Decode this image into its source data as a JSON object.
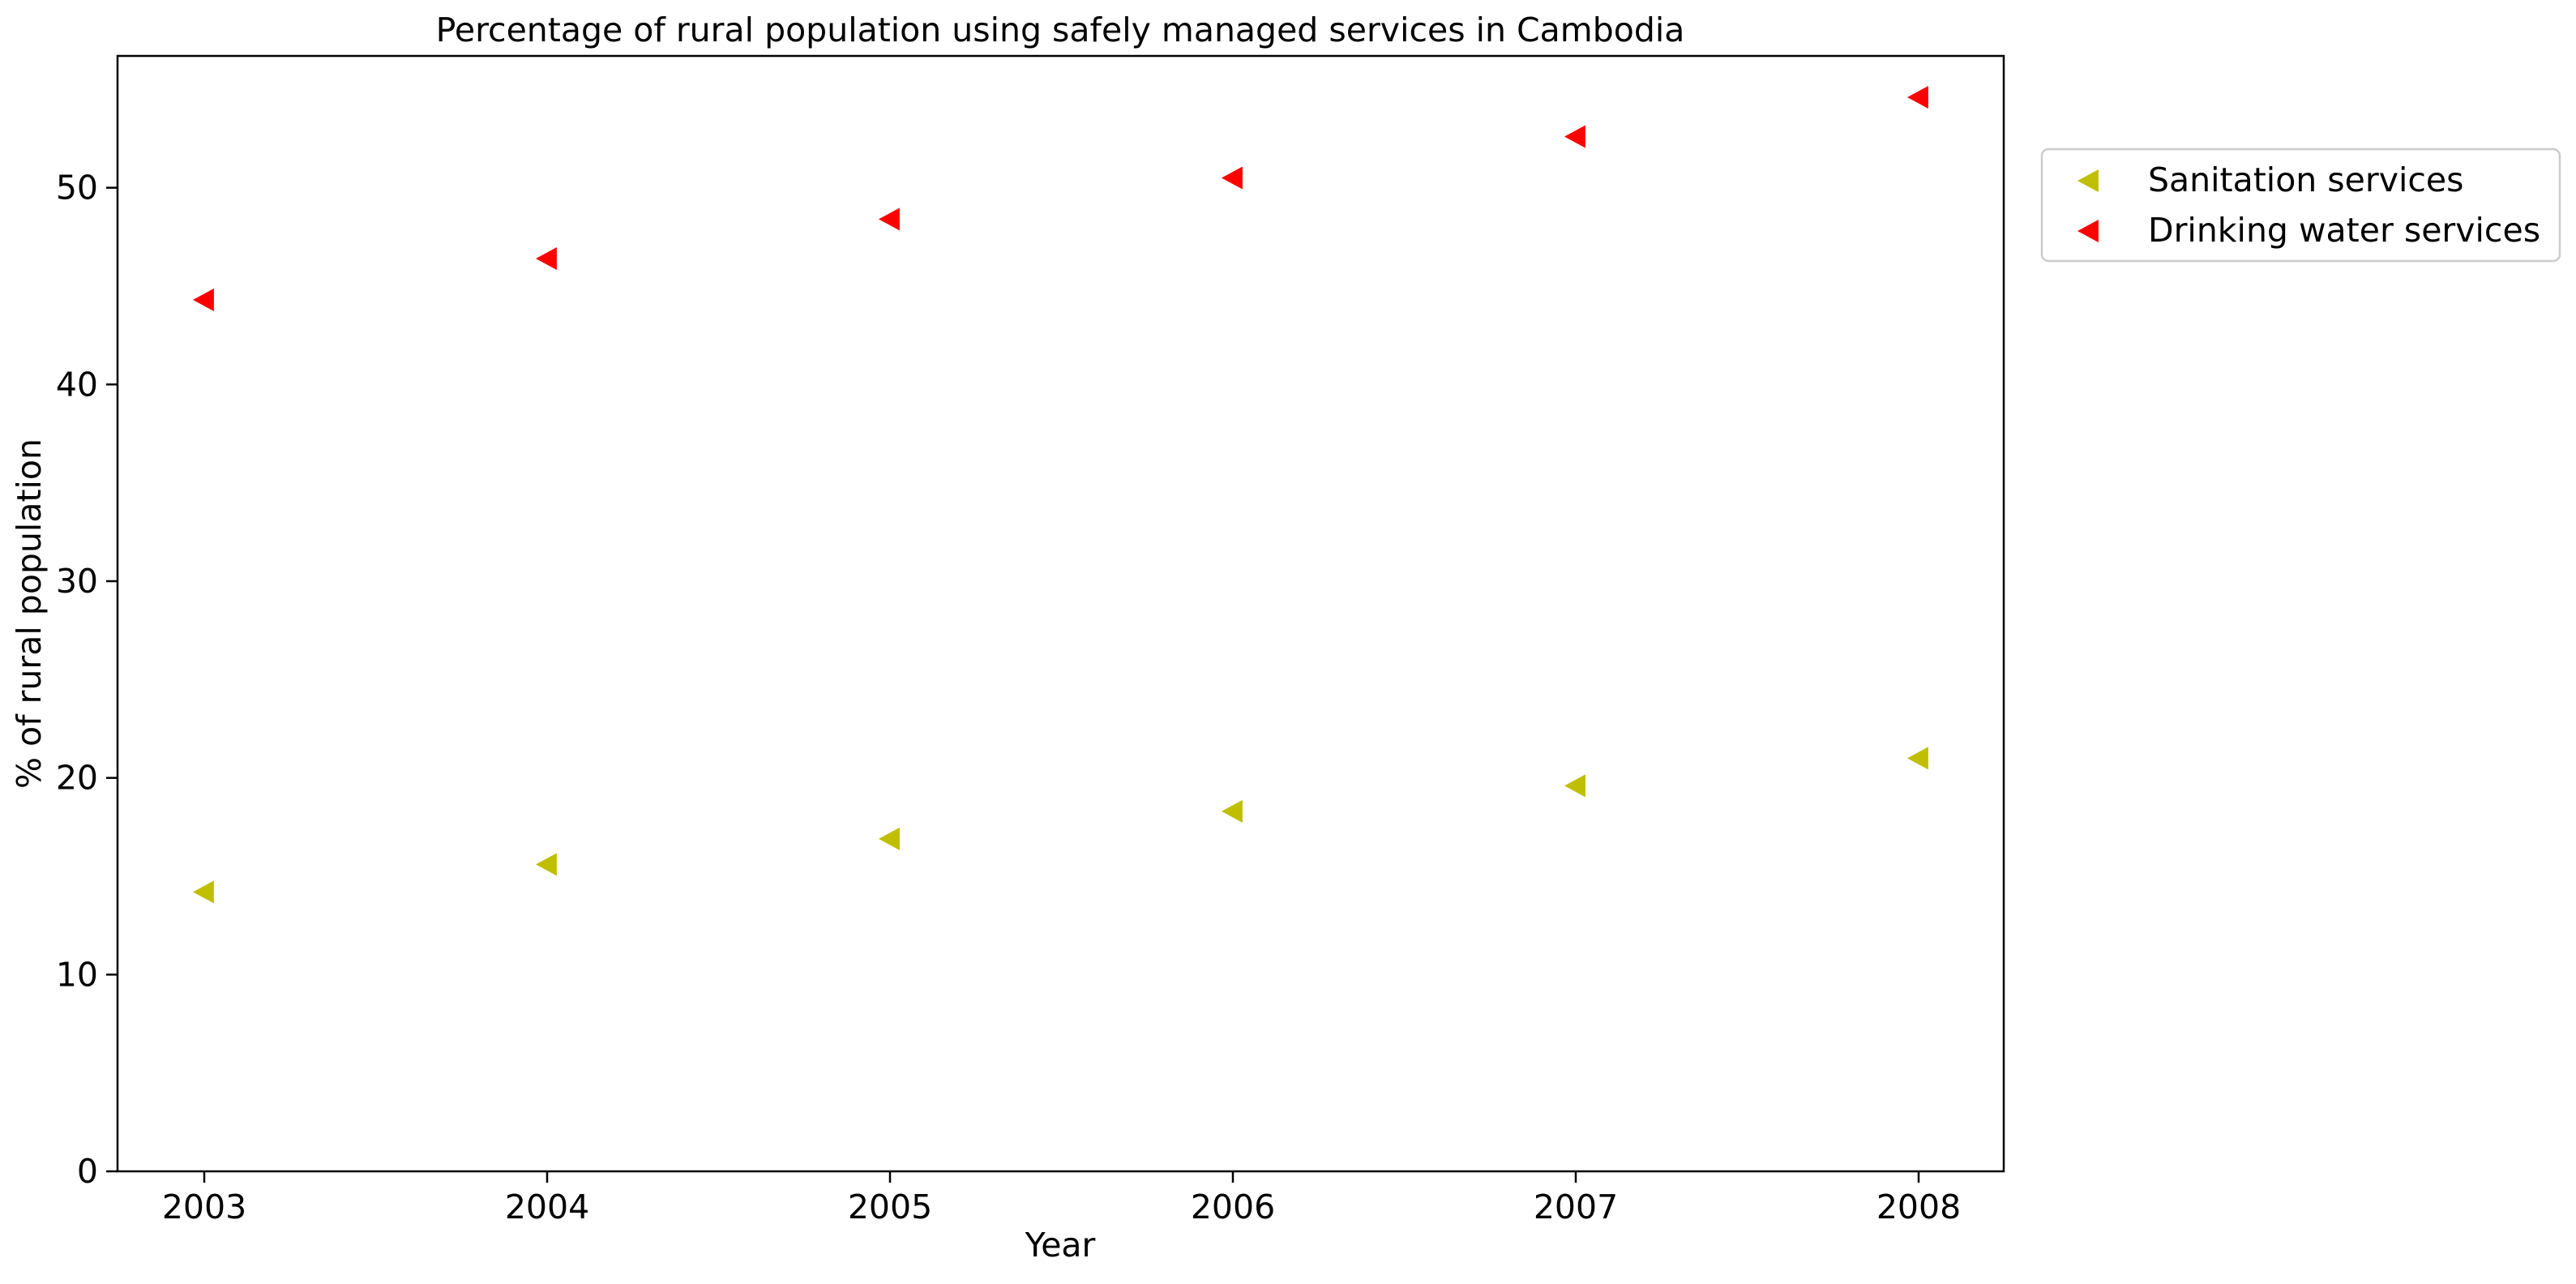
{
  "chart_data": {
    "type": "scatter",
    "title": "Percentage of rural population using safely managed services in Cambodia",
    "xlabel": "Year",
    "ylabel": "% of rural population",
    "x": [
      2003,
      2004,
      2005,
      2006,
      2007,
      2008
    ],
    "x_tick_labels": [
      "2003",
      "2004",
      "2005",
      "2006",
      "2007",
      "2008"
    ],
    "ylim": [
      0,
      56.7
    ],
    "y_ticks": [
      0,
      10,
      20,
      30,
      40,
      50
    ],
    "y_tick_labels": [
      "0",
      "10",
      "20",
      "30",
      "40",
      "50"
    ],
    "grid": false,
    "legend_position": "outside-top-right",
    "marker": "triangle-left",
    "series": [
      {
        "name": "Sanitation services",
        "color": "#bfbf00",
        "values": [
          14.2,
          15.6,
          16.9,
          18.3,
          19.6,
          21.0
        ]
      },
      {
        "name": "Drinking water services",
        "color": "#ff0000",
        "values": [
          44.3,
          46.4,
          48.4,
          50.5,
          52.6,
          54.6
        ]
      }
    ]
  }
}
